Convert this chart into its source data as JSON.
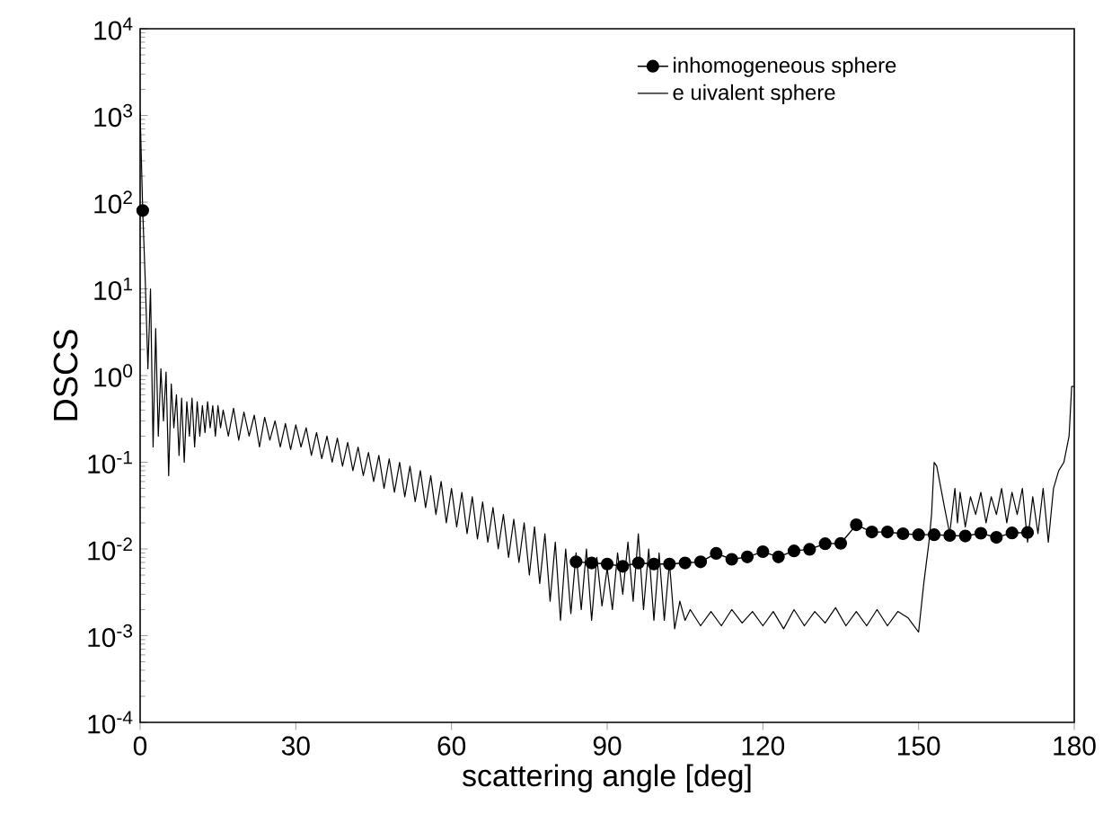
{
  "chart_data": {
    "type": "line",
    "xlabel": "scattering angle [deg]",
    "ylabel": "DSCS",
    "log": "y",
    "grid": false,
    "legend": "top right",
    "xlim": [
      0,
      180
    ],
    "xticks": [
      0,
      30,
      60,
      90,
      120,
      150,
      180
    ],
    "ylim": [
      0.0001,
      10000
    ],
    "yticks": [
      {
        "value": 0.0001,
        "label": "10$^{-4}$"
      },
      {
        "value": 0.001,
        "label": "10$^{-3}$"
      },
      {
        "value": 0.01,
        "label": "10$^{-2}$"
      },
      {
        "value": 0.1,
        "label": "10$^{-1}$"
      },
      {
        "value": 1,
        "label": "10$^{0}$"
      },
      {
        "value": 10,
        "label": "10$^{1}$"
      },
      {
        "value": 100,
        "label": "10$^{2}$"
      },
      {
        "value": 1000,
        "label": "10$^{3}$"
      },
      {
        "value": 10000,
        "label": "10$^{4}$"
      }
    ],
    "series": [
      {
        "name": "inhomogeneous sphere",
        "color": "#000000",
        "marker": "circle",
        "line_style": "solid",
        "x": [
          0.5,
          3,
          6,
          9,
          12,
          15,
          18,
          21,
          24,
          27,
          30,
          33,
          36,
          39,
          42,
          45,
          48,
          51,
          54,
          57,
          60,
          63,
          66,
          69,
          72,
          75,
          78,
          81,
          84,
          87,
          90,
          93,
          96,
          99,
          102,
          105,
          108,
          111,
          114,
          117,
          120,
          123,
          126,
          129,
          132,
          135,
          138,
          141,
          144,
          147,
          150,
          153,
          156,
          159,
          162,
          165,
          168,
          171
        ],
        "values": [
          80,
          null,
          null,
          null,
          null,
          null,
          null,
          null,
          null,
          null,
          null,
          null,
          null,
          null,
          null,
          null,
          null,
          null,
          null,
          null,
          null,
          null,
          null,
          null,
          null,
          null,
          null,
          null,
          0.0071,
          0.0069,
          0.0067,
          0.0063,
          0.0069,
          0.0067,
          0.0067,
          0.0069,
          0.0071,
          0.0089,
          0.0076,
          0.0081,
          0.0093,
          0.0081,
          0.0095,
          0.0099,
          0.0115,
          0.0116,
          0.019,
          0.0157,
          0.0157,
          0.015,
          0.0146,
          0.0146,
          0.0143,
          0.0141,
          0.0152,
          0.0136,
          0.0153,
          0.0155
        ]
      },
      {
        "name": "e uivalent sphere",
        "color": "#000000",
        "marker": "none",
        "line_style": "solid",
        "x": [
          0,
          0.5,
          1,
          1.5,
          2,
          2.5,
          3,
          3.5,
          4,
          4.5,
          5,
          5.5,
          6,
          6.5,
          7,
          7.5,
          8,
          8.5,
          9,
          9.5,
          10,
          10.5,
          11,
          11.5,
          12,
          12.5,
          13,
          13.5,
          14,
          14.5,
          15,
          15.5,
          16,
          17,
          18,
          19,
          20,
          21,
          22,
          23,
          24,
          25,
          26,
          27,
          28,
          29,
          30,
          31,
          32,
          33,
          34,
          35,
          36,
          37,
          38,
          39,
          40,
          41,
          42,
          43,
          44,
          45,
          46,
          47,
          48,
          49,
          50,
          51,
          52,
          53,
          54,
          55,
          56,
          57,
          58,
          59,
          60,
          61,
          62,
          63,
          64,
          65,
          66,
          67,
          68,
          69,
          70,
          71,
          72,
          73,
          74,
          75,
          76,
          77,
          78,
          79,
          80,
          81,
          82,
          83,
          84,
          85,
          86,
          87,
          88,
          89,
          90,
          91,
          92,
          93,
          94,
          95,
          96,
          97,
          98,
          99,
          100,
          101,
          102,
          103,
          104,
          105,
          106,
          108,
          110,
          112,
          114,
          116,
          118,
          120,
          122,
          124,
          126,
          128,
          130,
          132,
          134,
          136,
          138,
          140,
          142,
          144,
          146,
          148,
          150,
          151,
          152,
          152.5,
          153,
          153.5,
          155,
          156,
          157,
          157.5,
          158,
          159,
          160,
          161,
          162,
          163,
          164,
          165,
          166,
          167,
          168,
          169,
          170,
          171,
          172,
          173,
          174,
          175,
          176,
          177,
          178,
          179,
          179.5,
          180
        ],
        "values": [
          1100,
          80,
          12,
          1.2,
          10,
          0.15,
          3.5,
          0.2,
          1.2,
          0.3,
          1.1,
          0.07,
          0.8,
          0.25,
          0.6,
          0.12,
          0.55,
          0.1,
          0.5,
          0.2,
          0.55,
          0.15,
          0.5,
          0.2,
          0.45,
          0.22,
          0.5,
          0.25,
          0.45,
          0.2,
          0.45,
          0.25,
          0.4,
          0.2,
          0.42,
          0.18,
          0.38,
          0.2,
          0.35,
          0.15,
          0.33,
          0.18,
          0.3,
          0.15,
          0.28,
          0.14,
          0.27,
          0.15,
          0.25,
          0.12,
          0.22,
          0.11,
          0.2,
          0.1,
          0.19,
          0.09,
          0.17,
          0.08,
          0.15,
          0.07,
          0.13,
          0.06,
          0.12,
          0.05,
          0.11,
          0.045,
          0.1,
          0.04,
          0.09,
          0.035,
          0.08,
          0.03,
          0.07,
          0.025,
          0.06,
          0.02,
          0.05,
          0.018,
          0.045,
          0.015,
          0.04,
          0.013,
          0.035,
          0.012,
          0.03,
          0.01,
          0.025,
          0.008,
          0.022,
          0.007,
          0.02,
          0.005,
          0.018,
          0.004,
          0.015,
          0.0025,
          0.012,
          0.0015,
          0.01,
          0.0018,
          0.009,
          0.002,
          0.01,
          0.0015,
          0.008,
          0.0022,
          0.006,
          0.002,
          0.009,
          0.003,
          0.012,
          0.0025,
          0.015,
          0.002,
          0.01,
          0.0015,
          0.009,
          0.0015,
          0.007,
          0.0012,
          0.0025,
          0.0015,
          0.002,
          0.0013,
          0.0019,
          0.0013,
          0.002,
          0.0014,
          0.0019,
          0.0013,
          0.0019,
          0.0012,
          0.002,
          0.0013,
          0.0019,
          0.0014,
          0.0021,
          0.0013,
          0.0019,
          0.0013,
          0.002,
          0.0013,
          0.0019,
          0.0016,
          0.0011,
          0.004,
          0.012,
          0.025,
          0.1,
          0.09,
          0.03,
          0.015,
          0.05,
          0.02,
          0.045,
          0.018,
          0.04,
          0.025,
          0.045,
          0.02,
          0.04,
          0.025,
          0.05,
          0.02,
          0.045,
          0.025,
          0.05,
          0.012,
          0.04,
          0.015,
          0.05,
          0.012,
          0.05,
          0.08,
          0.1,
          0.2,
          0.75,
          0.75
        ]
      }
    ]
  }
}
